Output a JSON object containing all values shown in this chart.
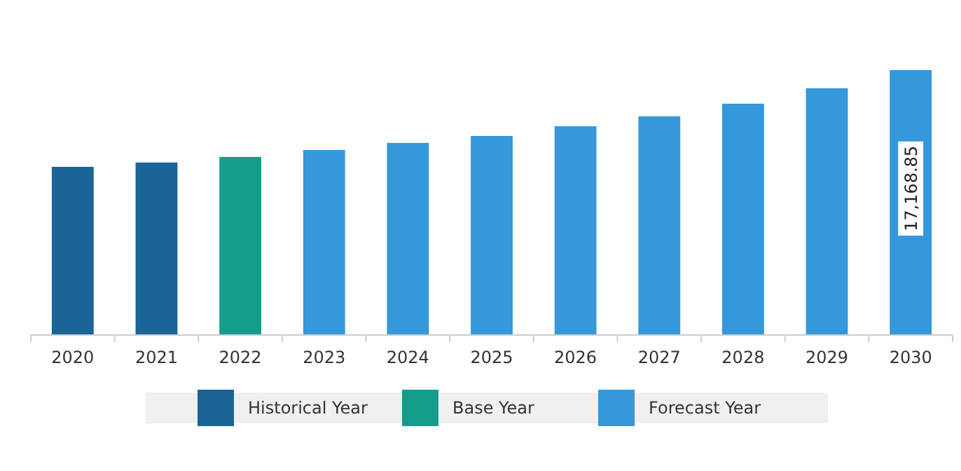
{
  "chart_data": {
    "type": "bar",
    "legend": "bottom",
    "categories": [
      "2020",
      "2021",
      "2022",
      "2023",
      "2024",
      "2025",
      "2026",
      "2027",
      "2028",
      "2029",
      "2030"
    ],
    "series": [
      {
        "name": "Historical Year",
        "color": "#1a6496",
        "values": [
          10900,
          11180,
          null,
          null,
          null,
          null,
          null,
          null,
          null,
          null,
          null
        ]
      },
      {
        "name": "Base Year",
        "color": "#129e8a",
        "values": [
          null,
          null,
          11540,
          null,
          null,
          null,
          null,
          null,
          null,
          null,
          null
        ]
      },
      {
        "name": "Forecast Year",
        "color": "#3498db",
        "values": [
          null,
          null,
          null,
          11990,
          12450,
          12900,
          13530,
          14170,
          14990,
          15990,
          17168.85
        ],
        "value_labels": [
          null,
          null,
          null,
          null,
          null,
          null,
          null,
          null,
          null,
          null,
          "17,168.85"
        ]
      }
    ]
  }
}
